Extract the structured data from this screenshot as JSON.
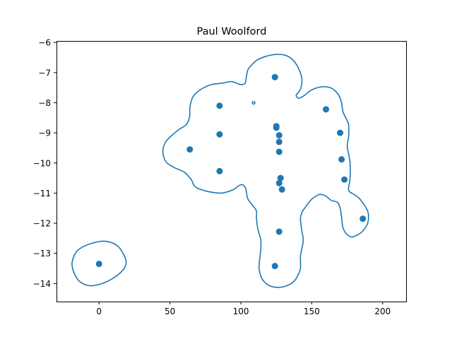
{
  "chart_data": {
    "type": "scatter",
    "title": "Paul Woolford",
    "xlabel": "",
    "ylabel": "",
    "xlim": [
      -30,
      217
    ],
    "ylim": [
      -14.6,
      -5.95
    ],
    "x_ticks": [
      0,
      50,
      100,
      150,
      200
    ],
    "y_ticks": [
      -14,
      -13,
      -12,
      -11,
      -10,
      -9,
      -8,
      -7,
      -6
    ],
    "x_tick_labels": [
      "0",
      "50",
      "100",
      "150",
      "200"
    ],
    "y_tick_labels": [
      "−14",
      "−13",
      "−12",
      "−11",
      "−10",
      "−9",
      "−8",
      "−7",
      "−6"
    ],
    "grid": false,
    "points": [
      {
        "x": 0,
        "y": -13.35
      },
      {
        "x": 64,
        "y": -9.55
      },
      {
        "x": 85,
        "y": -8.1
      },
      {
        "x": 85,
        "y": -9.05
      },
      {
        "x": 85,
        "y": -10.27
      },
      {
        "x": 124,
        "y": -7.15
      },
      {
        "x": 125,
        "y": -8.78
      },
      {
        "x": 125,
        "y": -8.83
      },
      {
        "x": 127,
        "y": -9.08
      },
      {
        "x": 127,
        "y": -9.3
      },
      {
        "x": 127,
        "y": -9.63
      },
      {
        "x": 128,
        "y": -10.5
      },
      {
        "x": 127,
        "y": -10.67
      },
      {
        "x": 129,
        "y": -10.88
      },
      {
        "x": 127,
        "y": -12.28
      },
      {
        "x": 124,
        "y": -13.42
      },
      {
        "x": 160,
        "y": -8.22
      },
      {
        "x": 170,
        "y": -9.0
      },
      {
        "x": 171,
        "y": -9.88
      },
      {
        "x": 173,
        "y": -10.55
      },
      {
        "x": 186,
        "y": -11.85
      }
    ],
    "contours": [
      [
        [
          -19,
          -13.3
        ],
        [
          -16,
          -12.95
        ],
        [
          -10,
          -12.75
        ],
        [
          -2,
          -12.63
        ],
        [
          5,
          -12.6
        ],
        [
          13,
          -12.75
        ],
        [
          18,
          -13.1
        ],
        [
          19,
          -13.35
        ],
        [
          16,
          -13.6
        ],
        [
          9,
          -13.85
        ],
        [
          1,
          -14.02
        ],
        [
          -7,
          -14.07
        ],
        [
          -14,
          -13.92
        ],
        [
          -18,
          -13.6
        ],
        [
          -19,
          -13.3
        ]
      ],
      [
        [
          108,
          -8.0
        ],
        [
          109,
          -7.96
        ],
        [
          110,
          -8.0
        ],
        [
          109,
          -8.05
        ],
        [
          108,
          -8.0
        ]
      ],
      [
        [
          45,
          -9.6
        ],
        [
          47,
          -9.3
        ],
        [
          51,
          -9.1
        ],
        [
          56,
          -8.9
        ],
        [
          61,
          -8.75
        ],
        [
          63,
          -8.6
        ],
        [
          64,
          -8.4
        ],
        [
          64,
          -8.2
        ],
        [
          65,
          -7.95
        ],
        [
          67,
          -7.75
        ],
        [
          72,
          -7.55
        ],
        [
          79,
          -7.4
        ],
        [
          87,
          -7.35
        ],
        [
          93,
          -7.3
        ],
        [
          97,
          -7.35
        ],
        [
          100,
          -7.4
        ],
        [
          103,
          -7.35
        ],
        [
          104,
          -7.1
        ],
        [
          105,
          -6.9
        ],
        [
          107,
          -6.78
        ],
        [
          111,
          -6.6
        ],
        [
          117,
          -6.47
        ],
        [
          124,
          -6.4
        ],
        [
          131,
          -6.42
        ],
        [
          136,
          -6.55
        ],
        [
          140,
          -6.8
        ],
        [
          143,
          -7.2
        ],
        [
          142,
          -7.55
        ],
        [
          139,
          -7.75
        ],
        [
          141,
          -7.85
        ],
        [
          145,
          -7.75
        ],
        [
          149,
          -7.6
        ],
        [
          154,
          -7.5
        ],
        [
          160,
          -7.47
        ],
        [
          165,
          -7.55
        ],
        [
          169,
          -7.75
        ],
        [
          171,
          -8.0
        ],
        [
          172,
          -8.3
        ],
        [
          175,
          -8.6
        ],
        [
          176,
          -8.75
        ],
        [
          176,
          -9.1
        ],
        [
          175,
          -9.45
        ],
        [
          176,
          -9.7
        ],
        [
          177,
          -10.0
        ],
        [
          177,
          -10.5
        ],
        [
          176,
          -10.9
        ],
        [
          180,
          -11.05
        ],
        [
          184,
          -11.2
        ],
        [
          189,
          -11.55
        ],
        [
          190,
          -11.8
        ],
        [
          189,
          -12.05
        ],
        [
          185,
          -12.3
        ],
        [
          179,
          -12.45
        ],
        [
          175,
          -12.38
        ],
        [
          172,
          -12.15
        ],
        [
          171,
          -11.8
        ],
        [
          170,
          -11.5
        ],
        [
          168,
          -11.3
        ],
        [
          164,
          -11.25
        ],
        [
          160,
          -11.1
        ],
        [
          157,
          -11.05
        ],
        [
          155,
          -11.05
        ],
        [
          150,
          -11.2
        ],
        [
          145,
          -11.5
        ],
        [
          143,
          -11.65
        ],
        [
          142,
          -11.85
        ],
        [
          143,
          -12.25
        ],
        [
          144,
          -12.55
        ],
        [
          143,
          -12.85
        ],
        [
          142,
          -13.1
        ],
        [
          142,
          -13.5
        ],
        [
          140,
          -13.75
        ],
        [
          137,
          -13.95
        ],
        [
          132,
          -14.08
        ],
        [
          126,
          -14.13
        ],
        [
          120,
          -14.07
        ],
        [
          115,
          -13.85
        ],
        [
          113,
          -13.55
        ],
        [
          113,
          -13.3
        ],
        [
          114,
          -12.9
        ],
        [
          114,
          -12.55
        ],
        [
          112,
          -12.2
        ],
        [
          111,
          -11.85
        ],
        [
          111,
          -11.6
        ],
        [
          109,
          -11.45
        ],
        [
          105,
          -11.2
        ],
        [
          104,
          -11.0
        ],
        [
          103,
          -10.8
        ],
        [
          100,
          -10.72
        ],
        [
          94,
          -10.9
        ],
        [
          86,
          -11.0
        ],
        [
          77,
          -10.95
        ],
        [
          70,
          -10.85
        ],
        [
          67,
          -10.75
        ],
        [
          65,
          -10.55
        ],
        [
          60,
          -10.3
        ],
        [
          53,
          -10.15
        ],
        [
          47,
          -9.95
        ],
        [
          45,
          -9.6
        ]
      ]
    ]
  }
}
